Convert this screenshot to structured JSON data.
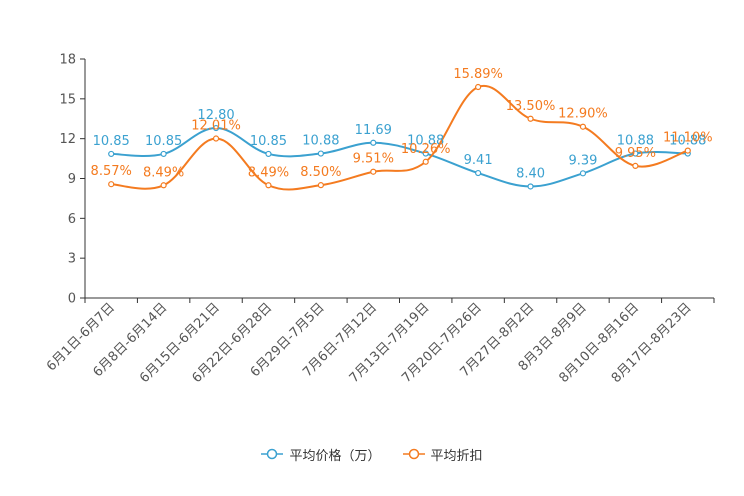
{
  "chart_data": {
    "type": "line",
    "categories": [
      "6月1日-6月7日",
      "6月8日-6月14日",
      "6月15日-6月21日",
      "6月22日-6月28日",
      "6月29日-7月5日",
      "7月6日-7月12日",
      "7月13日-7月19日",
      "7月20日-7月26日",
      "7月27日-8月2日",
      "8月3日-8月9日",
      "8月10日-8月16日",
      "8月17日-8月23日"
    ],
    "ylim": [
      0,
      18
    ],
    "yticks": [
      0,
      3,
      6,
      9,
      12,
      15,
      18
    ],
    "series": [
      {
        "name": "平均价格（万）",
        "color": "#3ba1d0",
        "values": [
          10.85,
          10.85,
          12.8,
          10.85,
          10.88,
          11.69,
          10.88,
          9.41,
          8.4,
          9.39,
          10.88,
          10.88
        ],
        "labels": [
          "10.85",
          "10.85",
          "12.80",
          "10.85",
          "10.88",
          "11.69",
          "10.88",
          "9.41",
          "8.40",
          "9.39",
          "10.88",
          "10.88"
        ]
      },
      {
        "name": "平均折扣",
        "color": "#f47b20",
        "values": [
          8.57,
          8.49,
          12.01,
          8.49,
          8.5,
          9.51,
          10.26,
          15.89,
          13.5,
          12.9,
          9.95,
          11.1
        ],
        "labels": [
          "8.57%",
          "8.49%",
          "12.01%",
          "8.49%",
          "8.50%",
          "9.51%",
          "10.26%",
          "15.89%",
          "13.50%",
          "12.90%",
          "9.95%",
          "11.10%"
        ]
      }
    ],
    "legend_position": "bottom-center"
  }
}
